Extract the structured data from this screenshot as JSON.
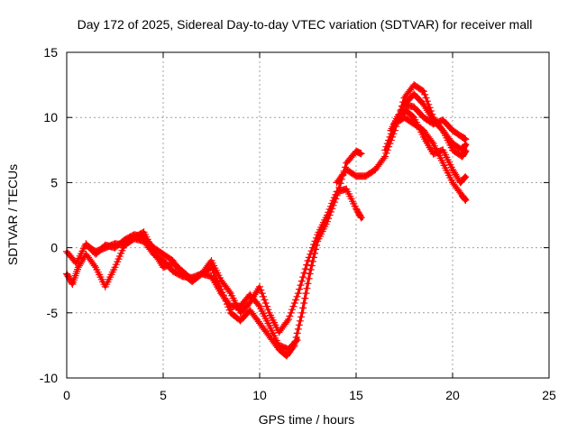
{
  "chart_data": {
    "type": "scatter",
    "title": "Day 172 of 2025, Sidereal Day-to-day VTEC variation (SDTVAR) for receiver mall",
    "xlabel": "GPS time / hours",
    "ylabel": "SDTVAR / TECUs",
    "xlim": [
      0,
      25
    ],
    "ylim": [
      -10,
      15
    ],
    "xticks": [
      0,
      5,
      10,
      15,
      20,
      25
    ],
    "yticks": [
      -10,
      -5,
      0,
      5,
      10,
      15
    ],
    "grid": true,
    "marker": "plus",
    "color": "#ff0000",
    "series": [
      {
        "name": "track-1",
        "points": [
          [
            0.0,
            -0.3
          ],
          [
            0.5,
            -1.2
          ],
          [
            1.0,
            0.3
          ],
          [
            1.5,
            -0.5
          ],
          [
            2.0,
            0.2
          ],
          [
            2.5,
            0.0
          ],
          [
            3.0,
            0.6
          ],
          [
            3.5,
            1.0
          ],
          [
            4.0,
            0.8
          ],
          [
            4.5,
            0.0
          ],
          [
            5.0,
            -0.5
          ],
          [
            5.5,
            -1.0
          ],
          [
            6.0,
            -2.0
          ],
          [
            6.5,
            -2.6
          ],
          [
            7.0,
            -2.0
          ],
          [
            7.5,
            -1.5
          ],
          [
            8.0,
            -3.2
          ],
          [
            8.5,
            -5.0
          ],
          [
            9.0,
            -5.6
          ],
          [
            9.5,
            -4.8
          ],
          [
            10.0,
            -5.8
          ],
          [
            10.5,
            -6.8
          ],
          [
            11.0,
            -7.8
          ],
          [
            11.4,
            -8.3
          ],
          [
            11.8,
            -7.5
          ],
          [
            12.2,
            -5.0
          ],
          [
            12.6,
            -2.0
          ],
          [
            13.0,
            0.5
          ],
          [
            13.5,
            2.0
          ],
          [
            14.0,
            4.0
          ],
          [
            14.5,
            6.5
          ],
          [
            15.0,
            7.4
          ],
          [
            15.3,
            7.2
          ]
        ]
      },
      {
        "name": "track-2",
        "points": [
          [
            0.0,
            -2.0
          ],
          [
            0.3,
            -2.8
          ],
          [
            0.6,
            -1.5
          ],
          [
            1.0,
            -0.5
          ],
          [
            1.5,
            -1.5
          ],
          [
            2.0,
            -3.0
          ],
          [
            2.5,
            -1.5
          ],
          [
            3.0,
            0.2
          ],
          [
            3.5,
            0.8
          ],
          [
            4.0,
            1.2
          ],
          [
            4.5,
            -0.3
          ],
          [
            5.0,
            -1.5
          ],
          [
            5.5,
            -1.2
          ],
          [
            6.0,
            -1.8
          ],
          [
            6.5,
            -2.5
          ],
          [
            7.0,
            -2.0
          ],
          [
            7.5,
            -1.0
          ],
          [
            8.0,
            -2.5
          ],
          [
            8.5,
            -3.5
          ],
          [
            9.0,
            -5.0
          ],
          [
            9.5,
            -4.2
          ],
          [
            10.0,
            -3.0
          ],
          [
            10.5,
            -5.0
          ],
          [
            11.0,
            -6.5
          ],
          [
            11.5,
            -5.5
          ],
          [
            12.0,
            -3.5
          ],
          [
            12.5,
            -1.0
          ],
          [
            13.0,
            1.0
          ],
          [
            13.5,
            2.5
          ],
          [
            14.0,
            4.3
          ],
          [
            14.5,
            4.5
          ],
          [
            15.0,
            3.0
          ],
          [
            15.3,
            2.2
          ]
        ]
      },
      {
        "name": "track-3",
        "points": [
          [
            1.0,
            0.2
          ],
          [
            1.5,
            -0.3
          ],
          [
            2.0,
            0.0
          ],
          [
            2.5,
            0.3
          ],
          [
            3.0,
            0.2
          ],
          [
            3.5,
            0.7
          ],
          [
            4.0,
            0.5
          ],
          [
            4.5,
            -0.5
          ],
          [
            5.0,
            -1.0
          ],
          [
            5.5,
            -1.8
          ],
          [
            6.0,
            -2.2
          ],
          [
            6.5,
            -2.3
          ],
          [
            7.0,
            -2.0
          ],
          [
            7.5,
            -2.2
          ],
          [
            8.0,
            -3.5
          ],
          [
            8.5,
            -4.5
          ],
          [
            9.0,
            -4.5
          ],
          [
            9.5,
            -3.6
          ],
          [
            10.0,
            -4.5
          ],
          [
            10.5,
            -6.0
          ],
          [
            11.0,
            -7.5
          ],
          [
            11.5,
            -7.8
          ],
          [
            12.0,
            -7.0
          ]
        ]
      },
      {
        "name": "track-4",
        "points": [
          [
            14.0,
            5.0
          ],
          [
            14.5,
            6.0
          ],
          [
            15.0,
            5.5
          ],
          [
            15.5,
            5.5
          ],
          [
            16.0,
            6.0
          ],
          [
            16.5,
            7.0
          ],
          [
            17.0,
            9.0
          ],
          [
            17.5,
            11.5
          ],
          [
            18.0,
            12.5
          ],
          [
            18.5,
            12.0
          ],
          [
            19.0,
            10.0
          ],
          [
            19.5,
            9.0
          ],
          [
            20.0,
            8.0
          ],
          [
            20.5,
            7.5
          ],
          [
            20.7,
            8.0
          ]
        ]
      },
      {
        "name": "track-5",
        "points": [
          [
            16.5,
            7.5
          ],
          [
            17.0,
            9.5
          ],
          [
            17.5,
            11.0
          ],
          [
            18.0,
            10.8
          ],
          [
            18.5,
            10.0
          ],
          [
            19.0,
            9.5
          ],
          [
            19.5,
            9.8
          ],
          [
            20.0,
            9.0
          ],
          [
            20.5,
            8.5
          ],
          [
            20.7,
            8.3
          ]
        ]
      },
      {
        "name": "track-6",
        "points": [
          [
            16.8,
            9.0
          ],
          [
            17.2,
            10.2
          ],
          [
            17.6,
            10.5
          ],
          [
            18.0,
            10.0
          ],
          [
            18.5,
            8.5
          ],
          [
            19.0,
            7.2
          ],
          [
            19.5,
            7.5
          ],
          [
            20.0,
            6.0
          ],
          [
            20.4,
            5.0
          ],
          [
            20.7,
            5.5
          ]
        ]
      },
      {
        "name": "track-7",
        "points": [
          [
            17.0,
            9.5
          ],
          [
            17.5,
            10.0
          ],
          [
            18.0,
            9.5
          ],
          [
            18.5,
            9.0
          ],
          [
            19.0,
            8.0
          ],
          [
            19.5,
            6.5
          ],
          [
            20.0,
            5.0
          ],
          [
            20.5,
            4.0
          ],
          [
            20.7,
            3.6
          ]
        ]
      },
      {
        "name": "track-8",
        "points": [
          [
            17.5,
            11.0
          ],
          [
            18.0,
            11.8
          ],
          [
            18.5,
            11.0
          ],
          [
            19.0,
            9.8
          ],
          [
            19.5,
            9.0
          ],
          [
            20.0,
            7.5
          ],
          [
            20.5,
            7.0
          ],
          [
            20.7,
            7.5
          ]
        ]
      }
    ]
  }
}
